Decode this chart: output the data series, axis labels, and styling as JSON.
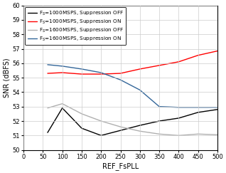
{
  "title": "",
  "xlabel": "REF_FsPLL",
  "ylabel": "SNR (dBFS)",
  "xlim": [
    0,
    500
  ],
  "ylim": [
    50,
    60
  ],
  "yticks": [
    50,
    51,
    52,
    53,
    54,
    55,
    56,
    57,
    58,
    59,
    60
  ],
  "xticks": [
    0,
    50,
    100,
    150,
    200,
    250,
    300,
    350,
    400,
    450,
    500
  ],
  "series": [
    {
      "label": "F$_S$=1000MSPS, Suppression OFF",
      "color": "#000000",
      "x": [
        62,
        100,
        150,
        200,
        250,
        300,
        350,
        400,
        450,
        500
      ],
      "y": [
        51.2,
        52.9,
        51.5,
        51.0,
        51.35,
        51.7,
        52.0,
        52.2,
        52.6,
        52.8
      ]
    },
    {
      "label": "F$_S$=1000MSPS, Suppression ON",
      "color": "#ff0000",
      "x": [
        62,
        100,
        150,
        200,
        250,
        300,
        350,
        400,
        450,
        500
      ],
      "y": [
        55.3,
        55.35,
        55.25,
        55.25,
        55.3,
        55.6,
        55.85,
        56.1,
        56.55,
        56.85
      ]
    },
    {
      "label": "F$_S$=1600MSPS, Suppression OFF",
      "color": "#b0b0b0",
      "x": [
        62,
        100,
        150,
        200,
        250,
        300,
        350,
        400,
        450,
        500
      ],
      "y": [
        52.9,
        53.2,
        52.5,
        52.0,
        51.6,
        51.3,
        51.1,
        51.0,
        51.1,
        51.05
      ]
    },
    {
      "label": "F$_S$=1600MSPS, Suppression ON",
      "color": "#336699",
      "x": [
        62,
        100,
        150,
        200,
        250,
        300,
        350,
        400,
        450,
        500
      ],
      "y": [
        55.9,
        55.8,
        55.6,
        55.35,
        54.85,
        54.15,
        53.0,
        52.95,
        52.95,
        52.95
      ]
    }
  ],
  "legend_fontsize": 5.2,
  "axis_fontsize": 7,
  "tick_fontsize": 6,
  "background_color": "#ffffff",
  "grid_color": "#cccccc",
  "linewidth": 1.0
}
